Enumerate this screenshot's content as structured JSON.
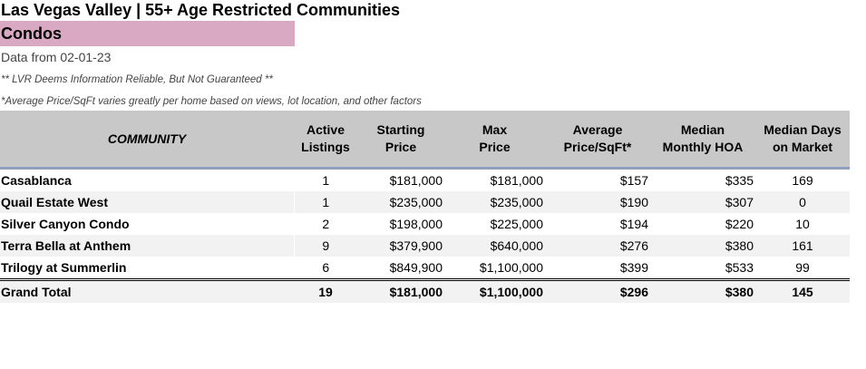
{
  "header": {
    "title": "Las Vegas Valley | 55+ Age Restricted Communities",
    "category": "Condos",
    "date": "Data from 02-01-23",
    "disclaimer": "** LVR Deems Information Reliable, But Not Guaranteed **",
    "footnote": "*Average Price/SqFt varies greatly per home based on views, lot location, and other factors"
  },
  "table": {
    "columns": {
      "community": "COMMUNITY",
      "active_1": "Active",
      "active_2": "Listings",
      "starting_1": "Starting",
      "starting_2": "Price",
      "max_1": "Max",
      "max_2": "Price",
      "avg_1": "Average",
      "avg_2": "Price/SqFt*",
      "hoa_1": "Median",
      "hoa_2": "Monthly HOA",
      "dom_1": "Median Days",
      "dom_2": "on Market"
    },
    "rows": [
      {
        "community": "Casablanca",
        "active": "1",
        "starting": "$181,000",
        "max": "$181,000",
        "avg_sqft": "$157",
        "hoa": "$335",
        "dom": "169"
      },
      {
        "community": "Quail Estate West",
        "active": "1",
        "starting": "$235,000",
        "max": "$235,000",
        "avg_sqft": "$190",
        "hoa": "$307",
        "dom": "0"
      },
      {
        "community": "Silver Canyon Condo",
        "active": "2",
        "starting": "$198,000",
        "max": "$225,000",
        "avg_sqft": "$194",
        "hoa": "$220",
        "dom": "10"
      },
      {
        "community": "Terra Bella at Anthem",
        "active": "9",
        "starting": "$379,900",
        "max": "$640,000",
        "avg_sqft": "$276",
        "hoa": "$380",
        "dom": "161"
      },
      {
        "community": "Trilogy at Summerlin",
        "active": "6",
        "starting": "$849,900",
        "max": "$1,100,000",
        "avg_sqft": "$399",
        "hoa": "$533",
        "dom": "99"
      }
    ],
    "total": {
      "community": "Grand Total",
      "active": "19",
      "starting": "$181,000",
      "max": "$1,100,000",
      "avg_sqft": "$296",
      "hoa": "$380",
      "dom": "145"
    }
  }
}
